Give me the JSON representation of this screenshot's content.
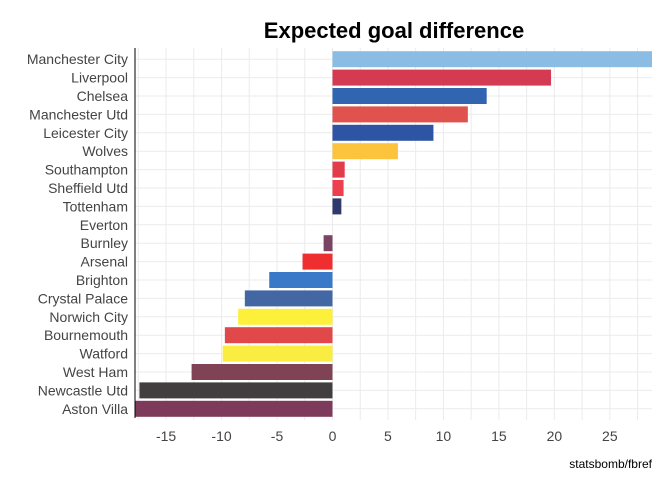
{
  "chart_data": {
    "type": "bar",
    "orientation": "horizontal",
    "title": "Expected goal difference",
    "caption": "statsbomb/fbref",
    "xlim": [
      -17.8,
      28.8
    ],
    "x_ticks": [
      -15,
      -10,
      -5,
      0,
      5,
      10,
      15,
      20,
      25
    ],
    "grid": true,
    "categories": [
      "Manchester City",
      "Liverpool",
      "Chelsea",
      "Manchester Utd",
      "Leicester City",
      "Wolves",
      "Southampton",
      "Sheffield Utd",
      "Tottenham",
      "Everton",
      "Burnley",
      "Arsenal",
      "Brighton",
      "Crystal Palace",
      "Norwich City",
      "Bournemouth",
      "Watford",
      "West Ham",
      "Newcastle Utd",
      "Aston Villa"
    ],
    "values": [
      28.8,
      19.7,
      13.9,
      12.2,
      9.1,
      5.9,
      1.1,
      1.0,
      0.8,
      0.0,
      -0.8,
      -2.7,
      -5.7,
      -7.9,
      -8.5,
      -9.7,
      -9.9,
      -12.7,
      -17.4,
      -17.8
    ],
    "colors": [
      "#8bbce4",
      "#d43b52",
      "#3165b0",
      "#e0524e",
      "#2e55a3",
      "#fbc43c",
      "#e23b4a",
      "#ee3f4e",
      "#2d3a6b",
      "#1f3f85",
      "#7a4462",
      "#ef2e30",
      "#3a79c8",
      "#4367a3",
      "#fdf03a",
      "#e14849",
      "#fbec42",
      "#7f4355",
      "#423e3f",
      "#7e3a5a"
    ]
  }
}
